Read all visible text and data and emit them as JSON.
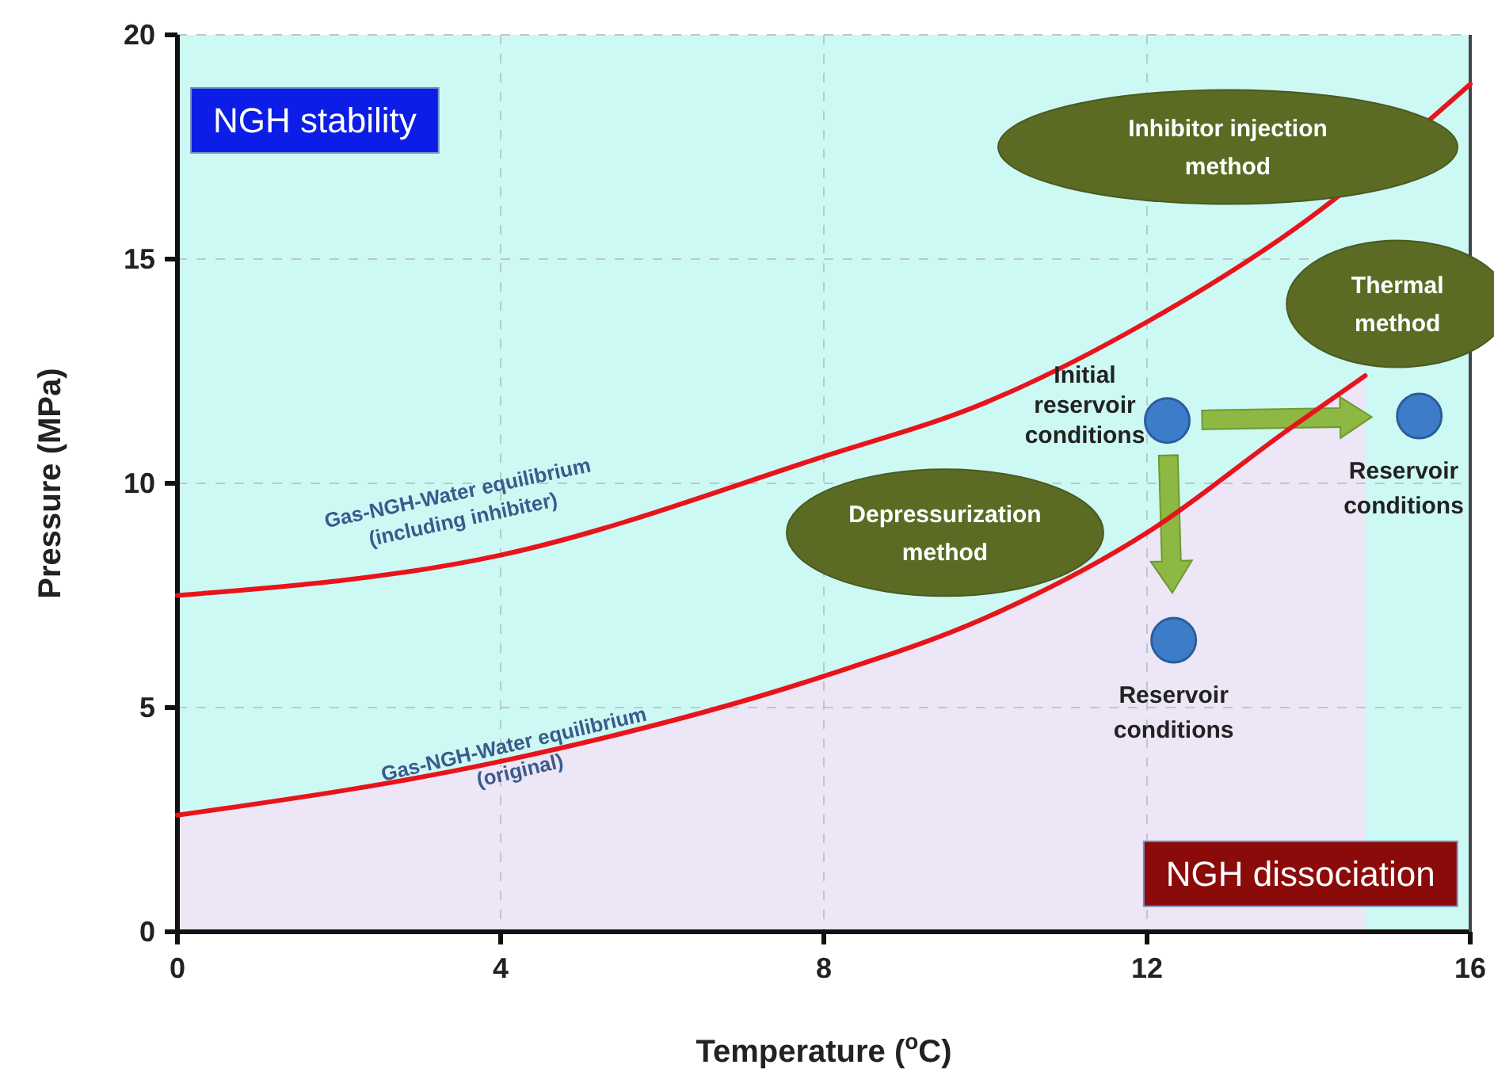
{
  "chart_data": {
    "type": "line",
    "xlabel": "Temperature ($^{o}$C)",
    "ylabel": "Pressure (MPa)",
    "xlim": [
      0,
      16
    ],
    "xticks": [
      0,
      4,
      8,
      12,
      16
    ],
    "ylim": [
      0,
      20
    ],
    "yticks": [
      0,
      5,
      10,
      15,
      20
    ],
    "grid": true,
    "line_style": "solid",
    "series": [
      {
        "color": "#e8141c",
        "x": [
          0,
          4,
          8,
          10,
          12,
          14,
          16
        ],
        "values": [
          7.5,
          8.4,
          10.6,
          11.8,
          13.6,
          15.9,
          18.9
        ]
      },
      {
        "color": "#e8141c",
        "x": [
          0,
          4,
          8,
          10,
          12,
          13.75,
          14.7
        ],
        "values": [
          2.6,
          3.8,
          5.7,
          7.0,
          8.9,
          11.2,
          12.4
        ]
      },
      {
        "type": "scatter",
        "marker": "circle",
        "color": "#3d7cc9",
        "x": [
          12.25,
          15.37,
          12.33
        ],
        "values": [
          11.4,
          11.5,
          6.5
        ]
      }
    ],
    "annotations": [
      "NGH stability",
      "NGH dissociation",
      "Inhibitor injection\nmethod",
      "Thermal\nmethod",
      "Depressurization\nmethod",
      {
        "text": "Initial\nreservoir\nconditions",
        "x": 12.25,
        "y": 11.4
      },
      {
        "text": "Reservoir\nconditions",
        "x": 15.37,
        "y": 11.5
      },
      {
        "text": "Reservoir\nconditions",
        "x": 12.33,
        "y": 6.5
      },
      "Gas-NGH-Water equilibrium\n(including inhibiter)",
      {
        "text": "Gas-NGH-Water equilibrium\n(original)",
        "x": 4.2,
        "y": 3.9
      }
    ]
  }
}
